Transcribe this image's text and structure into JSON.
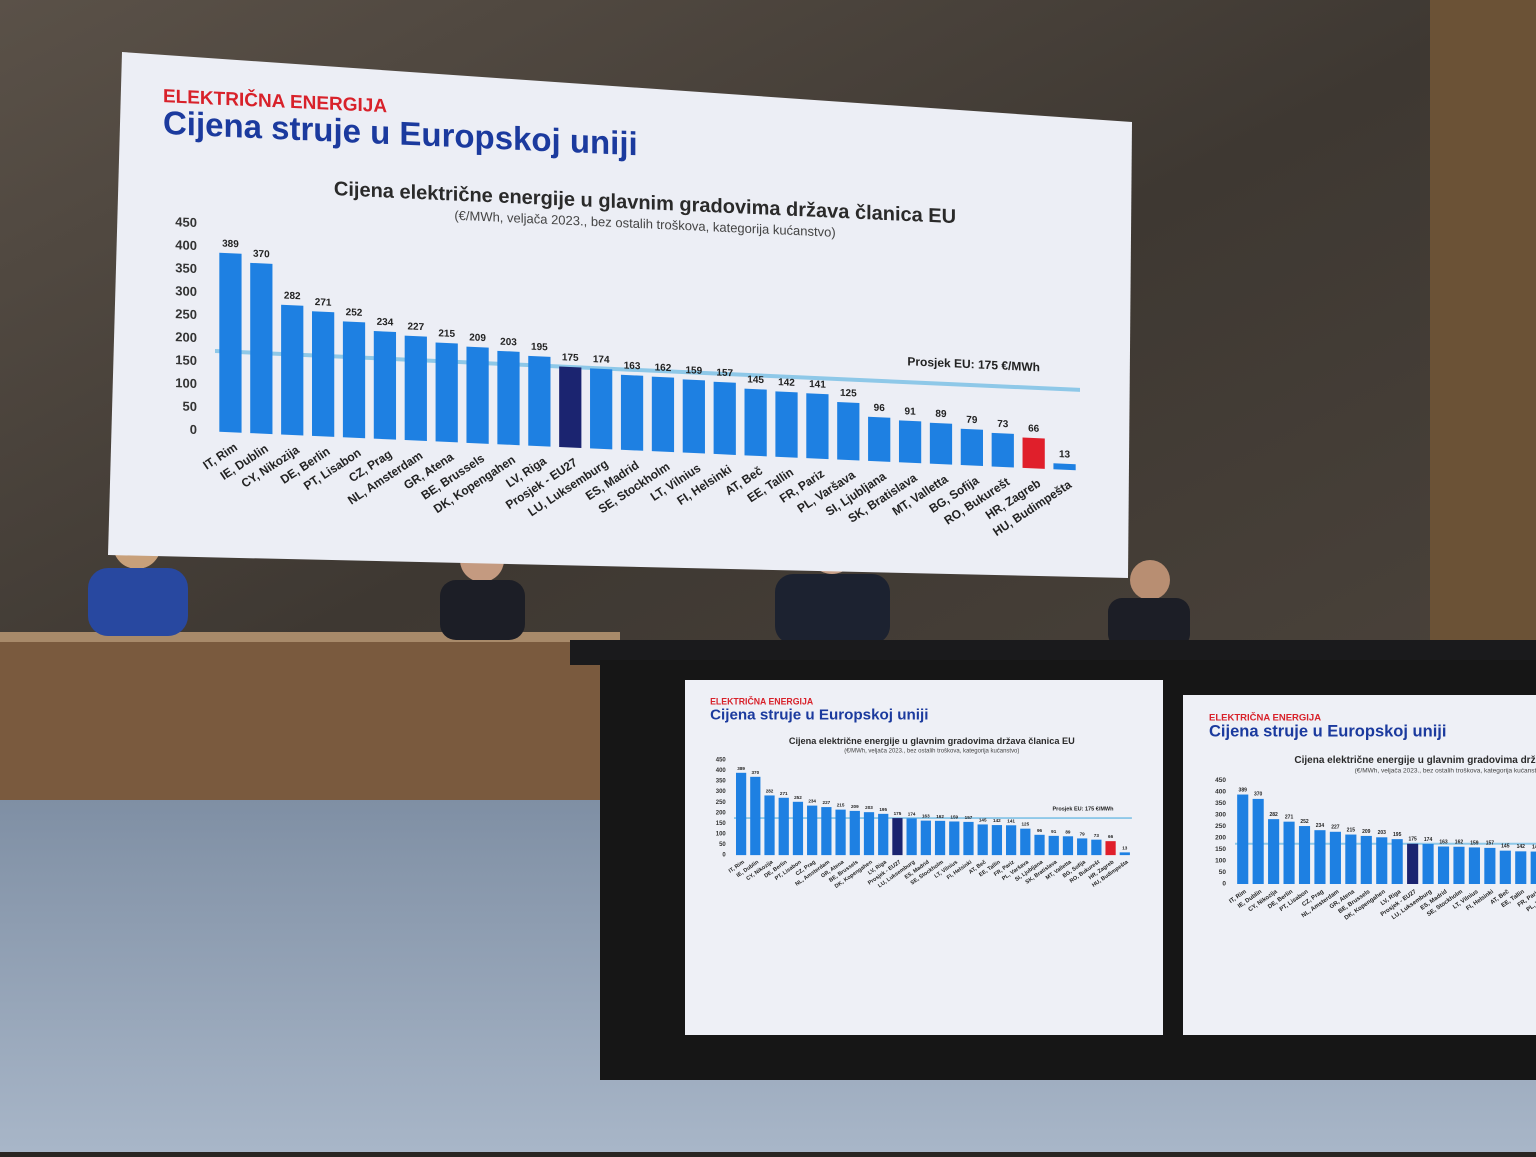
{
  "chart_data": {
    "type": "bar",
    "section": "ELEKTRIČNA ENERGIJA",
    "heading": "Cijena struje u Europskoj uniji",
    "title": "Cijena električne energije u glavnim gradovima država članica EU",
    "subtitle": "(€/MWh, veljača 2023., bez ostalih troškova, kategorija kućanstvo)",
    "categories": [
      "IT, Rim",
      "IE, Dublin",
      "CY, Nikozija",
      "DE, Berlin",
      "PT, Lisabon",
      "CZ, Prag",
      "NL, Amsterdam",
      "GR, Atena",
      "BE, Brussels",
      "DK, Kopengahen",
      "LV, Riga",
      "Prosjek - EU27",
      "LU, Luksemburg",
      "ES, Madrid",
      "SE, Stockholm",
      "LT, Vilnius",
      "FI, Helsinki",
      "AT, Beč",
      "EE, Tallin",
      "FR, Pariz",
      "PL, Varšava",
      "SI, Ljubljana",
      "SK, Bratislava",
      "MT, Valletta",
      "BG, Sofija",
      "RO, Bukurešt",
      "HR, Zagreb",
      "HU, Budimpešta"
    ],
    "values": [
      389,
      370,
      282,
      271,
      252,
      234,
      227,
      215,
      209,
      203,
      195,
      175,
      174,
      163,
      162,
      159,
      157,
      145,
      142,
      141,
      125,
      96,
      91,
      89,
      79,
      73,
      66,
      13
    ],
    "colors": [
      "#1e80e2",
      "#1e80e2",
      "#1e80e2",
      "#1e80e2",
      "#1e80e2",
      "#1e80e2",
      "#1e80e2",
      "#1e80e2",
      "#1e80e2",
      "#1e80e2",
      "#1e80e2",
      "#1b2470",
      "#1e80e2",
      "#1e80e2",
      "#1e80e2",
      "#1e80e2",
      "#1e80e2",
      "#1e80e2",
      "#1e80e2",
      "#1e80e2",
      "#1e80e2",
      "#1e80e2",
      "#1e80e2",
      "#1e80e2",
      "#1e80e2",
      "#1e80e2",
      "#e01f2b",
      "#1e80e2"
    ],
    "ylim": [
      0,
      450
    ],
    "yticks": [
      0,
      50,
      100,
      150,
      200,
      250,
      300,
      350,
      400,
      450
    ],
    "reference_line": {
      "value": 175,
      "label": "Prosjek EU: 175 €/MWh",
      "color": "#8ec8e8"
    }
  }
}
